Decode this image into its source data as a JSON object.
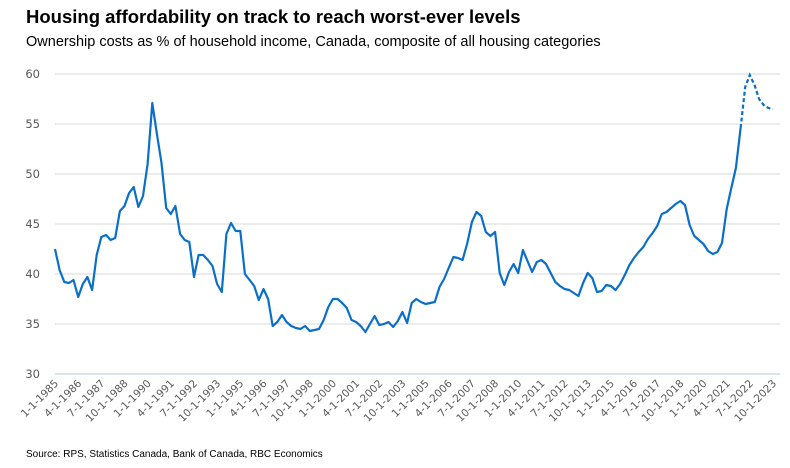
{
  "chart_data": {
    "type": "line",
    "title": "Housing affordability on track to reach worst-ever levels",
    "subtitle": "Ownership costs as % of household income, Canada, composite of all housing categories",
    "source": "Source: RPS, Statistics Canada, Bank of Canada, RBC Economics",
    "xlabel": "",
    "ylabel": "",
    "ylim": [
      30,
      60
    ],
    "yticks": [
      30,
      35,
      40,
      45,
      50,
      55,
      60
    ],
    "grid": true,
    "legend": "none",
    "line_color": "#0a6fc8",
    "grid_color": "#d9d9d9",
    "axis_color": "#b4c7e7",
    "x_tick_labels": [
      "1-1-1985",
      "4-1-1986",
      "7-1-1987",
      "10-1-1988",
      "1-1-1990",
      "4-1-1991",
      "7-1-1992",
      "10-1-1993",
      "1-1-1995",
      "4-1-1996",
      "7-1-1997",
      "10-1-1998",
      "1-1-2000",
      "4-1-2001",
      "7-1-2002",
      "10-1-2003",
      "1-1-2005",
      "4-1-2006",
      "7-1-2007",
      "10-1-2008",
      "1-1-2010",
      "4-1-2011",
      "7-1-2012",
      "10-1-2013",
      "1-1-2015",
      "4-1-2016",
      "7-1-2017",
      "10-1-2018",
      "1-1-2020",
      "4-1-2021",
      "7-1-2022",
      "10-1-2023"
    ],
    "x": [
      "1-1-1985",
      "4-1-1985",
      "7-1-1985",
      "10-1-1985",
      "1-1-1986",
      "4-1-1986",
      "7-1-1986",
      "10-1-1986",
      "1-1-1987",
      "4-1-1987",
      "7-1-1987",
      "10-1-1987",
      "1-1-1988",
      "4-1-1988",
      "7-1-1988",
      "10-1-1988",
      "1-1-1989",
      "4-1-1989",
      "7-1-1989",
      "10-1-1989",
      "1-1-1990",
      "4-1-1990",
      "7-1-1990",
      "10-1-1990",
      "1-1-1991",
      "4-1-1991",
      "7-1-1991",
      "10-1-1991",
      "1-1-1992",
      "4-1-1992",
      "7-1-1992",
      "10-1-1992",
      "1-1-1993",
      "4-1-1993",
      "7-1-1993",
      "10-1-1993",
      "1-1-1994",
      "4-1-1994",
      "7-1-1994",
      "10-1-1994",
      "1-1-1995",
      "4-1-1995",
      "7-1-1995",
      "10-1-1995",
      "1-1-1996",
      "4-1-1996",
      "7-1-1996",
      "10-1-1996",
      "1-1-1997",
      "4-1-1997",
      "7-1-1997",
      "10-1-1997",
      "1-1-1998",
      "4-1-1998",
      "7-1-1998",
      "10-1-1998",
      "1-1-1999",
      "4-1-1999",
      "7-1-1999",
      "10-1-1999",
      "1-1-2000",
      "4-1-2000",
      "7-1-2000",
      "10-1-2000",
      "1-1-2001",
      "4-1-2001",
      "7-1-2001",
      "10-1-2001",
      "1-1-2002",
      "4-1-2002",
      "7-1-2002",
      "10-1-2002",
      "1-1-2003",
      "4-1-2003",
      "7-1-2003",
      "10-1-2003",
      "1-1-2004",
      "4-1-2004",
      "7-1-2004",
      "10-1-2004",
      "1-1-2005",
      "4-1-2005",
      "7-1-2005",
      "10-1-2005",
      "1-1-2006",
      "4-1-2006",
      "7-1-2006",
      "10-1-2006",
      "1-1-2007",
      "4-1-2007",
      "7-1-2007",
      "10-1-2007",
      "1-1-2008",
      "4-1-2008",
      "7-1-2008",
      "10-1-2008",
      "1-1-2009",
      "4-1-2009",
      "7-1-2009",
      "10-1-2009",
      "1-1-2010",
      "4-1-2010",
      "7-1-2010",
      "10-1-2010",
      "1-1-2011",
      "4-1-2011",
      "7-1-2011",
      "10-1-2011",
      "1-1-2012",
      "4-1-2012",
      "7-1-2012",
      "10-1-2012",
      "1-1-2013",
      "4-1-2013",
      "7-1-2013",
      "10-1-2013",
      "1-1-2014",
      "4-1-2014",
      "7-1-2014",
      "10-1-2014",
      "1-1-2015",
      "4-1-2015",
      "7-1-2015",
      "10-1-2015",
      "1-1-2016",
      "4-1-2016",
      "7-1-2016",
      "10-1-2016",
      "1-1-2017",
      "4-1-2017",
      "7-1-2017",
      "10-1-2017",
      "1-1-2018",
      "4-1-2018",
      "7-1-2018",
      "10-1-2018",
      "1-1-2019",
      "4-1-2019",
      "7-1-2019",
      "10-1-2019",
      "1-1-2020",
      "4-1-2020",
      "7-1-2020",
      "10-1-2020",
      "1-1-2021",
      "4-1-2021",
      "7-1-2021",
      "10-1-2021",
      "1-1-2022",
      "4-1-2022",
      "7-1-2022",
      "10-1-2022",
      "1-1-2023",
      "4-1-2023",
      "7-1-2023",
      "10-1-2023"
    ],
    "values": [
      42.5,
      40.4,
      39.2,
      39.1,
      39.4,
      37.7,
      39.0,
      39.7,
      38.4,
      41.9,
      43.7,
      43.9,
      43.4,
      43.6,
      46.3,
      46.8,
      48.1,
      48.7,
      46.7,
      47.8,
      51.0,
      57.1,
      54.0,
      51.1,
      46.6,
      46.0,
      46.8,
      44.0,
      43.4,
      43.2,
      39.7,
      41.9,
      41.9,
      41.4,
      40.8,
      39.0,
      38.2,
      44.0,
      45.1,
      44.3,
      44.3,
      40.0,
      39.4,
      38.8,
      37.4,
      38.5,
      37.5,
      34.8,
      35.2,
      35.9,
      35.2,
      34.8,
      34.6,
      34.5,
      34.8,
      34.3,
      34.4,
      34.5,
      35.4,
      36.7,
      37.5,
      37.5,
      37.1,
      36.6,
      35.4,
      35.2,
      34.8,
      34.2,
      35.0,
      35.8,
      34.9,
      35.0,
      35.2,
      34.7,
      35.3,
      36.2,
      35.1,
      37.1,
      37.5,
      37.2,
      37.0,
      37.1,
      37.2,
      38.7,
      39.5,
      40.6,
      41.7,
      41.6,
      41.4,
      43.1,
      45.2,
      46.2,
      45.8,
      44.2,
      43.8,
      44.2,
      40.1,
      38.9,
      40.2,
      41.0,
      40.1,
      42.4,
      41.3,
      40.2,
      41.2,
      41.4,
      41.0,
      40.1,
      39.2,
      38.8,
      38.5,
      38.4,
      38.1,
      37.8,
      39.1,
      40.1,
      39.6,
      38.2,
      38.3,
      38.9,
      38.8,
      38.4,
      39.0,
      39.9,
      40.9,
      41.6,
      42.2,
      42.7,
      43.5,
      44.1,
      44.8,
      46.0,
      46.2,
      46.6,
      47.0,
      47.3,
      46.9,
      44.9,
      43.8,
      43.4,
      43.0,
      42.3,
      42.0,
      42.2,
      43.1,
      46.5,
      48.6,
      50.6,
      54.6,
      58.7,
      59.9,
      58.9,
      57.5,
      56.9,
      56.6,
      56.5
    ],
    "forecast_from": "1-1-2022",
    "forecast_style": "dashed"
  }
}
